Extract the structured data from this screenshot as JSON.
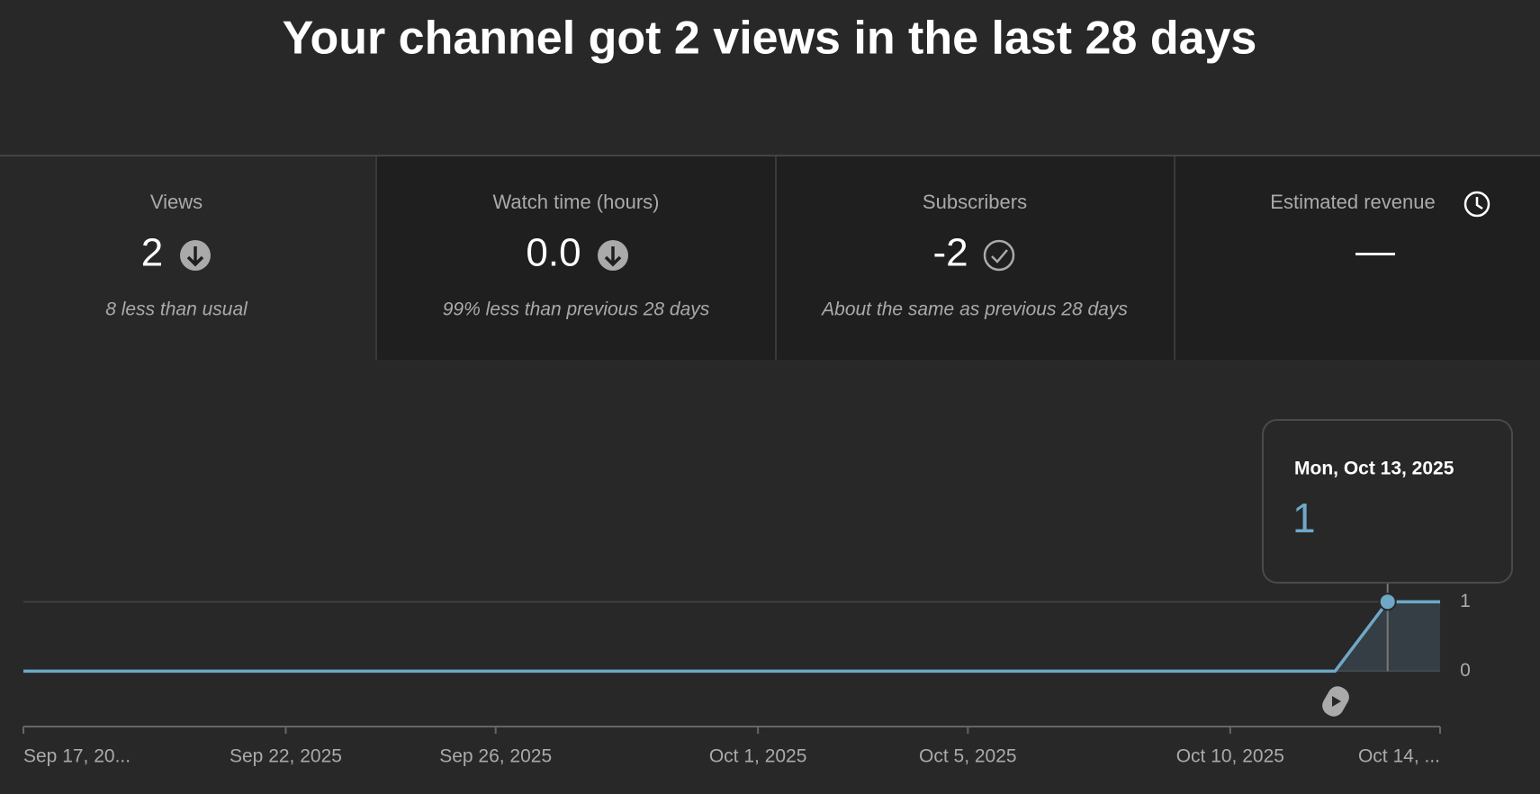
{
  "header": {
    "title": "Your channel got 2 views in the last 28 days"
  },
  "metrics": [
    {
      "label": "Views",
      "value": "2",
      "note": "8 less than usual"
    },
    {
      "label": "Watch time (hours)",
      "value": "0.0",
      "note": "99% less than previous 28 days"
    },
    {
      "label": "Subscribers",
      "value": "-2",
      "note": "About the same as previous 28 days"
    },
    {
      "label": "Estimated revenue",
      "value": "—"
    }
  ],
  "chart_data": {
    "type": "line",
    "x": [
      "2025-09-17",
      "2025-09-18",
      "2025-09-19",
      "2025-09-20",
      "2025-09-21",
      "2025-09-22",
      "2025-09-23",
      "2025-09-24",
      "2025-09-25",
      "2025-09-26",
      "2025-09-27",
      "2025-09-28",
      "2025-09-29",
      "2025-09-30",
      "2025-10-01",
      "2025-10-02",
      "2025-10-03",
      "2025-10-04",
      "2025-10-05",
      "2025-10-06",
      "2025-10-07",
      "2025-10-08",
      "2025-10-09",
      "2025-10-10",
      "2025-10-11",
      "2025-10-12",
      "2025-10-13",
      "2025-10-14"
    ],
    "values": [
      0,
      0,
      0,
      0,
      0,
      0,
      0,
      0,
      0,
      0,
      0,
      0,
      0,
      0,
      0,
      0,
      0,
      0,
      0,
      0,
      0,
      0,
      0,
      0,
      0,
      0,
      1,
      1
    ],
    "color": "#6fa8c7",
    "xlim": [
      "2025-09-17",
      "2025-10-14"
    ],
    "xticks": [
      {
        "value": "2025-09-17",
        "label": "Sep 17, 20..."
      },
      {
        "value": "2025-09-22",
        "label": "Sep 22, 2025"
      },
      {
        "value": "2025-09-26",
        "label": "Sep 26, 2025"
      },
      {
        "value": "2025-10-01",
        "label": "Oct 1, 2025"
      },
      {
        "value": "2025-10-05",
        "label": "Oct 5, 2025"
      },
      {
        "value": "2025-10-10",
        "label": "Oct 10, 2025"
      },
      {
        "value": "2025-10-14",
        "label": "Oct 14, ..."
      }
    ],
    "ylim": [
      -0.8,
      3
    ],
    "yticks": [
      0,
      1
    ],
    "grid": true,
    "tooltip": {
      "title": "Mon, Oct 13, 2025"
    }
  }
}
